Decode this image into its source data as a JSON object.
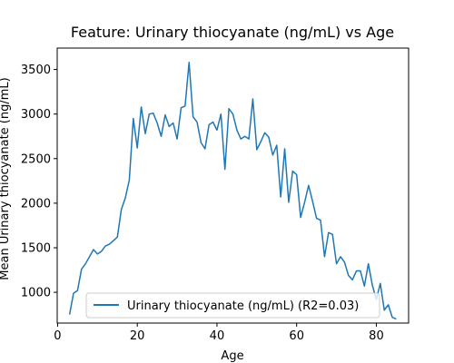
{
  "chart_data": {
    "type": "line",
    "title": "Feature: Urinary thiocyanate (ng/mL) vs Age",
    "xlabel": "Age",
    "ylabel": "Mean Urinary thiocyanate (ng/mL)",
    "xlim": [
      -0.1,
      88.1
    ],
    "ylim": [
      655,
      3740
    ],
    "xticks": [
      0,
      20,
      40,
      60,
      80
    ],
    "yticks": [
      1000,
      1500,
      2000,
      2500,
      3000,
      3500
    ],
    "grid": false,
    "legend": {
      "location": "lower center"
    },
    "colors": {
      "series": "#1f77b4"
    },
    "series": [
      {
        "name": "Urinary thiocyanate (ng/mL) (R2=0.03)",
        "x": [
          3,
          4,
          5,
          6,
          7,
          8,
          9,
          10,
          11,
          12,
          13,
          14,
          15,
          16,
          17,
          18,
          19,
          20,
          21,
          22,
          23,
          24,
          25,
          26,
          27,
          28,
          29,
          30,
          31,
          32,
          33,
          34,
          35,
          36,
          37,
          38,
          39,
          40,
          41,
          42,
          43,
          44,
          45,
          46,
          47,
          48,
          49,
          50,
          51,
          52,
          53,
          54,
          55,
          56,
          57,
          58,
          59,
          60,
          61,
          62,
          63,
          64,
          65,
          66,
          67,
          68,
          69,
          70,
          71,
          72,
          73,
          74,
          75,
          76,
          77,
          78,
          79,
          80,
          81,
          82,
          83,
          84,
          85
        ],
        "y": [
          750,
          990,
          1020,
          1260,
          1320,
          1400,
          1480,
          1430,
          1460,
          1520,
          1540,
          1580,
          1620,
          1930,
          2060,
          2260,
          2950,
          2620,
          3080,
          2780,
          3000,
          3010,
          2900,
          2750,
          2990,
          2860,
          2900,
          2720,
          3070,
          3090,
          3580,
          2970,
          2910,
          2680,
          2610,
          2880,
          2910,
          2820,
          3000,
          2380,
          3060,
          3000,
          2820,
          2720,
          2750,
          2720,
          3170,
          2600,
          2690,
          2790,
          2740,
          2540,
          2650,
          2070,
          2610,
          2010,
          2360,
          2320,
          1840,
          2010,
          2200,
          2020,
          1830,
          1810,
          1400,
          1670,
          1650,
          1320,
          1400,
          1340,
          1190,
          1140,
          1240,
          1240,
          1070,
          1320,
          1080,
          920,
          1100,
          800,
          860,
          720,
          700
        ]
      }
    ]
  }
}
